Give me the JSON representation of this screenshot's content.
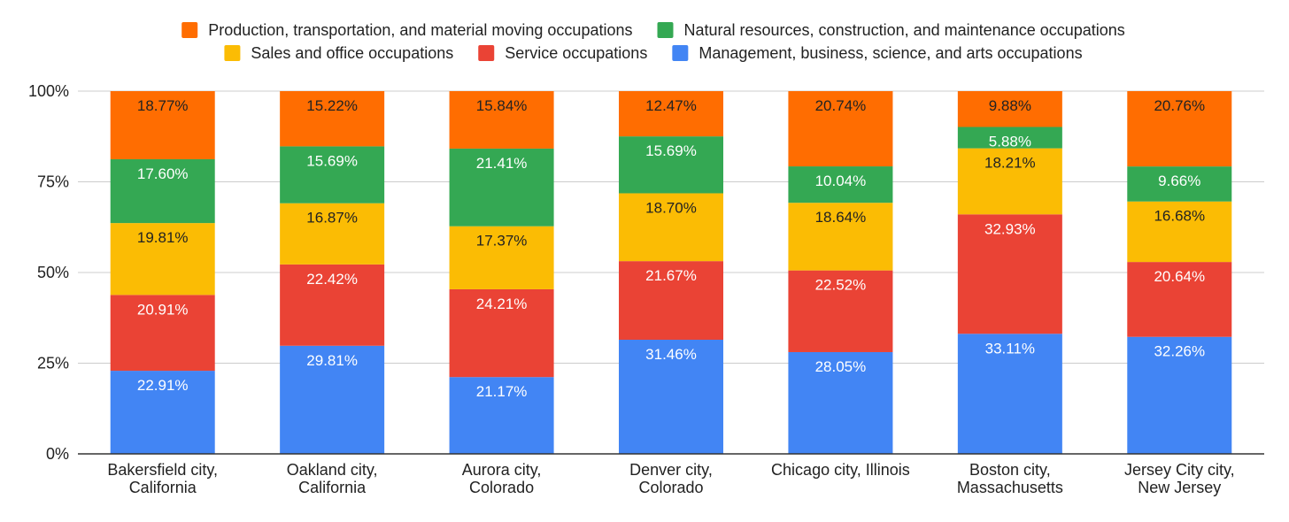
{
  "chart_data": {
    "type": "bar",
    "stacked": "percent",
    "title": "",
    "xlabel": "",
    "ylabel": "",
    "ylim": [
      0,
      100
    ],
    "y_ticks": [
      "0%",
      "25%",
      "50%",
      "75%",
      "100%"
    ],
    "grid": true,
    "legend_position": "top",
    "categories": [
      [
        "Bakersfield city,",
        "California"
      ],
      [
        "Oakland city,",
        "California"
      ],
      [
        "Aurora city,",
        "Colorado"
      ],
      [
        "Denver city,",
        "Colorado"
      ],
      [
        "Chicago city, Illinois"
      ],
      [
        "Boston city,",
        "Massachusetts"
      ],
      [
        "Jersey City city,",
        "New Jersey"
      ]
    ],
    "series": [
      {
        "name": "Management, business, science, and arts occupations",
        "color": "#4285f4",
        "label_color": "#ffffff",
        "values": [
          22.91,
          29.81,
          21.17,
          31.46,
          28.05,
          33.11,
          32.26
        ],
        "labels": [
          "22.91%",
          "29.81%",
          "21.17%",
          "31.46%",
          "28.05%",
          "33.11%",
          "32.26%"
        ]
      },
      {
        "name": "Service occupations",
        "color": "#ea4335",
        "label_color": "#ffffff",
        "values": [
          20.91,
          22.42,
          24.21,
          21.67,
          22.52,
          32.93,
          20.64
        ],
        "labels": [
          "20.91%",
          "22.42%",
          "24.21%",
          "21.67%",
          "22.52%",
          "32.93%",
          "20.64%"
        ]
      },
      {
        "name": "Sales and office occupations",
        "color": "#fbbc04",
        "label_color": "#222222",
        "values": [
          19.81,
          16.87,
          17.37,
          18.7,
          18.64,
          18.21,
          16.68
        ],
        "labels": [
          "19.81%",
          "16.87%",
          "17.37%",
          "18.70%",
          "18.64%",
          "18.21%",
          "16.68%"
        ]
      },
      {
        "name": "Natural resources, construction, and maintenance occupations",
        "color": "#34a853",
        "label_color": "#ffffff",
        "values": [
          17.6,
          15.69,
          21.41,
          15.69,
          10.04,
          5.88,
          9.66
        ],
        "labels": [
          "17.60%",
          "15.69%",
          "21.41%",
          "15.69%",
          "10.04%",
          "5.88%",
          "9.66%"
        ]
      },
      {
        "name": "Production, transportation, and material moving occupations",
        "color": "#ff6d01",
        "label_color": "#222222",
        "values": [
          18.77,
          15.22,
          15.84,
          12.47,
          20.74,
          9.88,
          20.76
        ],
        "labels": [
          "18.77%",
          "15.22%",
          "15.84%",
          "12.47%",
          "20.74%",
          "9.88%",
          "20.76%"
        ]
      }
    ],
    "legend_order": [
      4,
      3,
      2,
      1,
      0
    ]
  }
}
